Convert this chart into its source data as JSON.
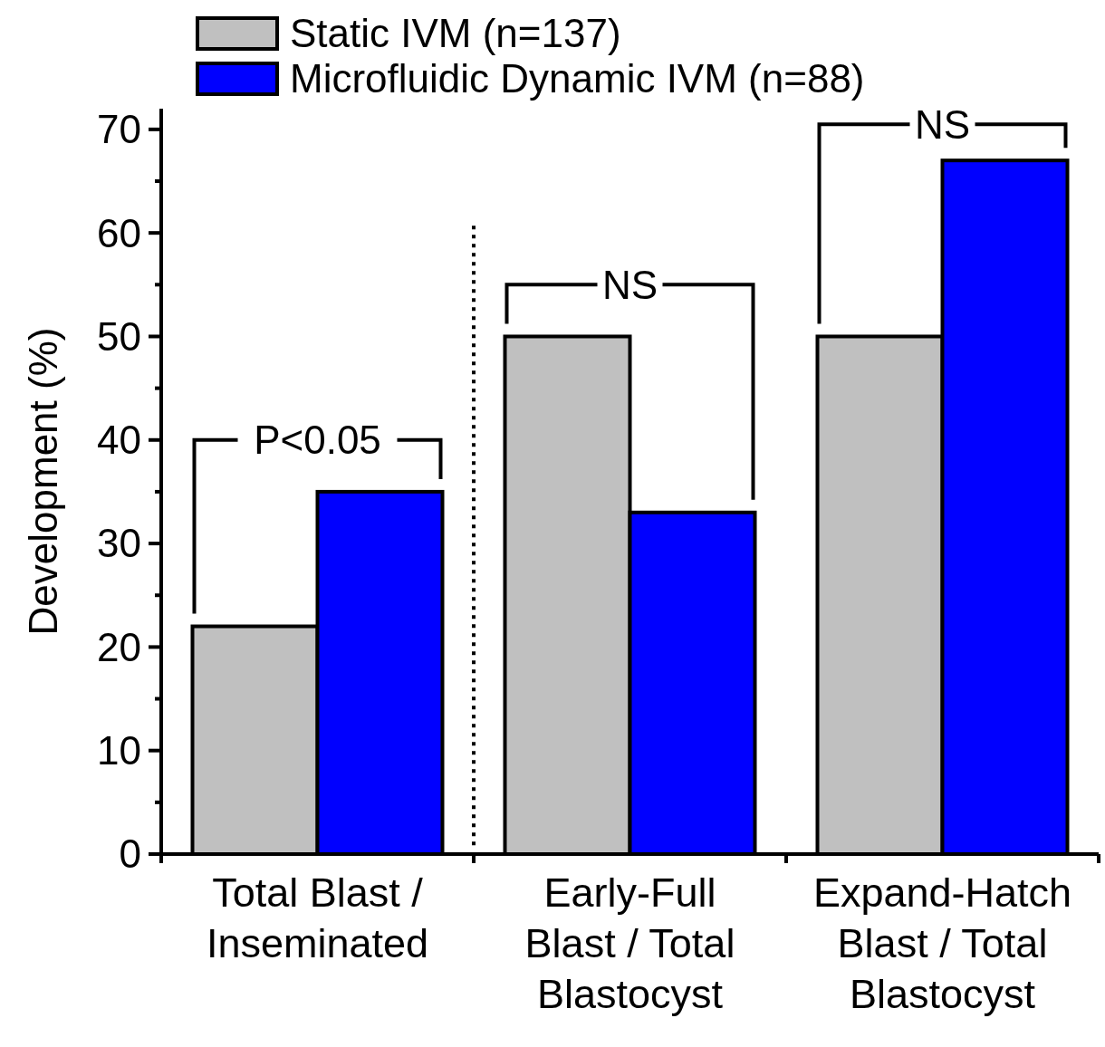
{
  "chart_data": {
    "type": "bar",
    "ylabel": "Development (%)",
    "categories": [
      "Total Blast / Inseminated",
      "Early-Full Blast / Total Blastocyst",
      "Expand-Hatch Blast / Total Blastocyst"
    ],
    "series": [
      {
        "name": "Static IVM (n=137)",
        "color": "#c0c0c0",
        "values": [
          22,
          50,
          50
        ]
      },
      {
        "name": "Microfluidic Dynamic IVM (n=88)",
        "color": "#0000ff",
        "values": [
          35,
          33,
          67
        ]
      }
    ],
    "ylim": [
      0,
      72
    ],
    "yticks": [
      0,
      10,
      20,
      30,
      40,
      50,
      60,
      70
    ],
    "grid": false,
    "legend": "top",
    "annotations": [
      "P<0.05",
      "NS",
      "NS"
    ]
  }
}
